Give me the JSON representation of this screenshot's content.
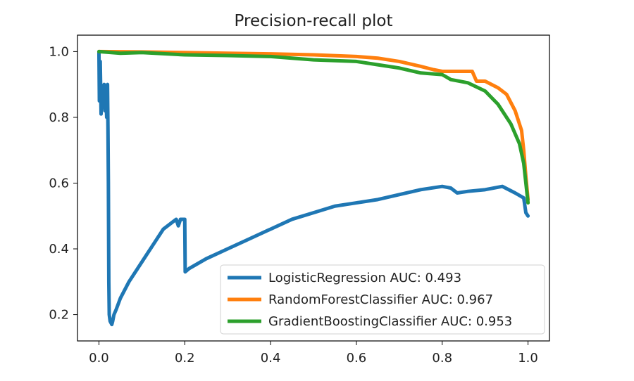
{
  "chart_data": {
    "type": "line",
    "title": "Precision-recall plot",
    "xlabel": "",
    "ylabel": "",
    "xlim": [
      -0.05,
      1.05
    ],
    "ylim": [
      0.12,
      1.05
    ],
    "xticks": [
      0.0,
      0.2,
      0.4,
      0.6,
      0.8,
      1.0
    ],
    "xtick_labels": [
      "0.0",
      "0.2",
      "0.4",
      "0.6",
      "0.8",
      "1.0"
    ],
    "yticks": [
      0.2,
      0.4,
      0.6,
      0.8,
      1.0
    ],
    "ytick_labels": [
      "0.2",
      "0.4",
      "0.6",
      "0.8",
      "1.0"
    ],
    "grid": false,
    "legend_position": "lower-right",
    "series": [
      {
        "name": "LogisticRegression AUC: 0.493",
        "color": "#1f77b4",
        "points": [
          [
            0.0,
            1.0
          ],
          [
            0.001,
            0.85
          ],
          [
            0.003,
            0.97
          ],
          [
            0.005,
            0.81
          ],
          [
            0.008,
            0.89
          ],
          [
            0.01,
            0.84
          ],
          [
            0.012,
            0.9
          ],
          [
            0.014,
            0.82
          ],
          [
            0.016,
            0.88
          ],
          [
            0.018,
            0.8
          ],
          [
            0.02,
            0.9
          ],
          [
            0.021,
            0.77
          ],
          [
            0.022,
            0.6
          ],
          [
            0.023,
            0.3
          ],
          [
            0.024,
            0.2
          ],
          [
            0.026,
            0.18
          ],
          [
            0.028,
            0.175
          ],
          [
            0.03,
            0.17
          ],
          [
            0.032,
            0.18
          ],
          [
            0.035,
            0.2
          ],
          [
            0.04,
            0.215
          ],
          [
            0.05,
            0.25
          ],
          [
            0.07,
            0.3
          ],
          [
            0.09,
            0.34
          ],
          [
            0.11,
            0.38
          ],
          [
            0.13,
            0.42
          ],
          [
            0.15,
            0.46
          ],
          [
            0.17,
            0.48
          ],
          [
            0.18,
            0.49
          ],
          [
            0.185,
            0.47
          ],
          [
            0.19,
            0.49
          ],
          [
            0.2,
            0.49
          ],
          [
            0.201,
            0.33
          ],
          [
            0.21,
            0.34
          ],
          [
            0.25,
            0.37
          ],
          [
            0.3,
            0.4
          ],
          [
            0.35,
            0.43
          ],
          [
            0.4,
            0.46
          ],
          [
            0.45,
            0.49
          ],
          [
            0.5,
            0.51
          ],
          [
            0.55,
            0.53
          ],
          [
            0.6,
            0.54
          ],
          [
            0.65,
            0.55
          ],
          [
            0.7,
            0.565
          ],
          [
            0.75,
            0.58
          ],
          [
            0.8,
            0.59
          ],
          [
            0.82,
            0.585
          ],
          [
            0.835,
            0.57
          ],
          [
            0.86,
            0.575
          ],
          [
            0.9,
            0.58
          ],
          [
            0.94,
            0.59
          ],
          [
            0.97,
            0.57
          ],
          [
            0.99,
            0.555
          ],
          [
            0.995,
            0.51
          ],
          [
            1.0,
            0.5
          ]
        ]
      },
      {
        "name": "RandomForestClassifier AUC: 0.967",
        "color": "#ff7f0e",
        "points": [
          [
            0.0,
            1.0
          ],
          [
            0.1,
            0.999
          ],
          [
            0.2,
            0.997
          ],
          [
            0.3,
            0.995
          ],
          [
            0.4,
            0.993
          ],
          [
            0.5,
            0.99
          ],
          [
            0.6,
            0.985
          ],
          [
            0.65,
            0.98
          ],
          [
            0.7,
            0.97
          ],
          [
            0.75,
            0.955
          ],
          [
            0.78,
            0.945
          ],
          [
            0.8,
            0.94
          ],
          [
            0.85,
            0.94
          ],
          [
            0.87,
            0.94
          ],
          [
            0.88,
            0.91
          ],
          [
            0.9,
            0.91
          ],
          [
            0.93,
            0.89
          ],
          [
            0.95,
            0.87
          ],
          [
            0.97,
            0.82
          ],
          [
            0.985,
            0.76
          ],
          [
            0.99,
            0.7
          ],
          [
            0.995,
            0.62
          ],
          [
            1.0,
            0.55
          ]
        ]
      },
      {
        "name": "GradientBoostingClassifier AUC: 0.953",
        "color": "#2ca02c",
        "points": [
          [
            0.0,
            1.0
          ],
          [
            0.05,
            0.995
          ],
          [
            0.1,
            0.997
          ],
          [
            0.2,
            0.99
          ],
          [
            0.3,
            0.988
          ],
          [
            0.4,
            0.985
          ],
          [
            0.45,
            0.98
          ],
          [
            0.5,
            0.975
          ],
          [
            0.6,
            0.97
          ],
          [
            0.65,
            0.96
          ],
          [
            0.7,
            0.95
          ],
          [
            0.75,
            0.935
          ],
          [
            0.8,
            0.93
          ],
          [
            0.82,
            0.915
          ],
          [
            0.86,
            0.905
          ],
          [
            0.9,
            0.88
          ],
          [
            0.93,
            0.84
          ],
          [
            0.96,
            0.78
          ],
          [
            0.98,
            0.72
          ],
          [
            0.99,
            0.66
          ],
          [
            1.0,
            0.54
          ]
        ]
      }
    ]
  }
}
